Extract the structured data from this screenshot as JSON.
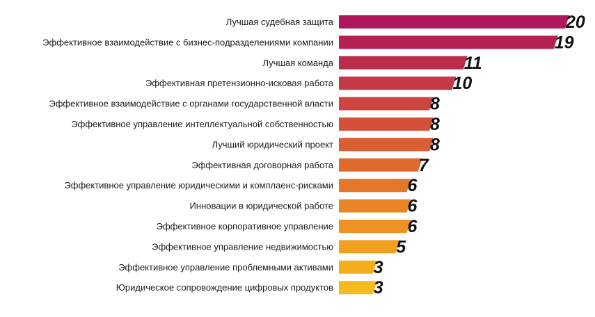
{
  "chart_data": {
    "type": "bar",
    "orientation": "horizontal",
    "title": "",
    "xlabel": "",
    "ylabel": "",
    "xlim": [
      0,
      20
    ],
    "grid": false,
    "legend": "none",
    "categories": [
      "Лучшая судебная защита",
      "Эффективное взаимодействие с бизнес-подразделениями компании",
      "Лучшая команда",
      "Эффективная претензионно-исковая работа",
      "Эффективное взаимодействие с органами государственной власти",
      "Эффективное управление интеллектуальной собственностью",
      "Лучший юридический проект",
      "Эффективная договорная работа",
      "Эффективное управление юридическими и комплаенс-рисками",
      "Инновации в юридической работе",
      "Эффективное корпоративное управление",
      "Эффективное управление недвижимостью",
      "Эффективное управление проблемными активами",
      "Юридическое сопровождение цифровых продуктов"
    ],
    "values": [
      20,
      19,
      11,
      10,
      8,
      8,
      8,
      7,
      6,
      6,
      6,
      5,
      3,
      3
    ],
    "colors": [
      "#b0175a",
      "#b52055",
      "#bc2c4d",
      "#c53846",
      "#cc4540",
      "#d5503a",
      "#da5e33",
      "#df6a2e",
      "#e4782a",
      "#e98526",
      "#ed9222",
      "#f0a01e",
      "#f2ae1c",
      "#f3bb1e"
    ]
  }
}
